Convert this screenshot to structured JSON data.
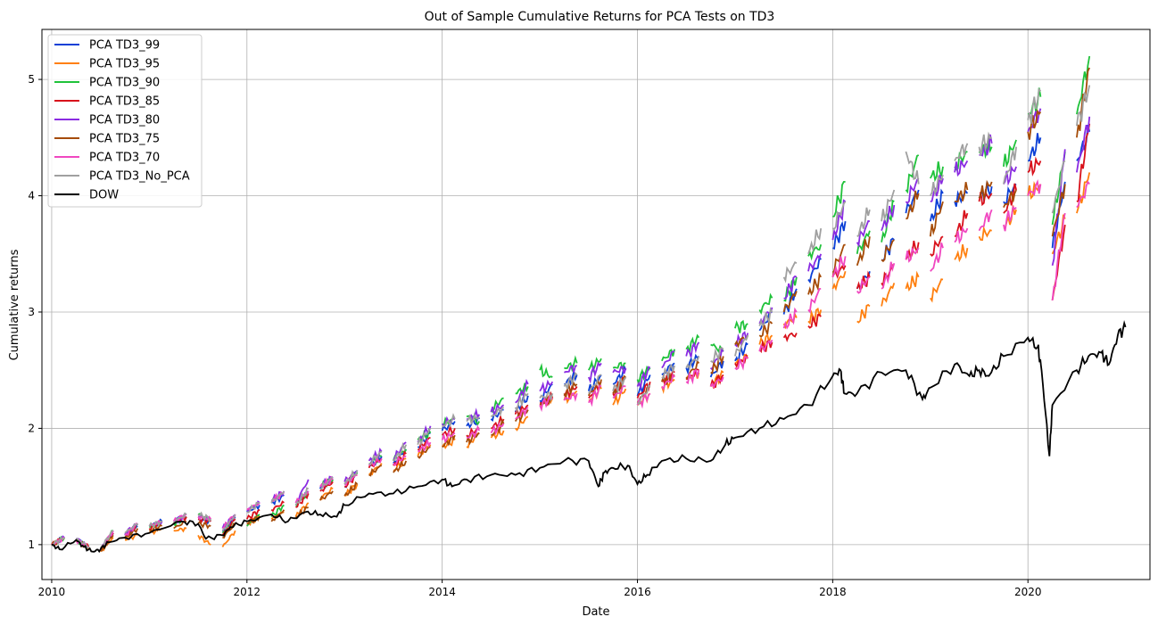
{
  "chart_data": {
    "type": "line",
    "title": "Out of Sample Cumulative Returns for PCA Tests on TD3",
    "xlabel": "Date",
    "ylabel": "Cumulative returns",
    "xlim": [
      2009.9,
      2021.25
    ],
    "ylim": [
      0.7,
      5.43
    ],
    "x_ticks": [
      2010,
      2012,
      2014,
      2016,
      2018,
      2020
    ],
    "x_tick_labels": [
      "2010",
      "2012",
      "2014",
      "2016",
      "2018",
      "2020"
    ],
    "y_ticks": [
      1,
      2,
      3,
      4,
      5
    ],
    "y_tick_labels": [
      "1",
      "2",
      "3",
      "4",
      "5"
    ],
    "grid": true,
    "legend_position": "top-left",
    "segment_starts": [
      2010.0,
      2010.25,
      2010.5,
      2010.75,
      2011.0,
      2011.25,
      2011.5,
      2011.75,
      2012.0,
      2012.25,
      2012.5,
      2012.75,
      2013.0,
      2013.25,
      2013.5,
      2013.75,
      2014.0,
      2014.25,
      2014.5,
      2014.75,
      2015.0,
      2015.25,
      2015.5,
      2015.75,
      2016.0,
      2016.25,
      2016.5,
      2016.75,
      2017.0,
      2017.25,
      2017.5,
      2017.75,
      2018.0,
      2018.25,
      2018.5,
      2018.75,
      2019.0,
      2019.25,
      2019.5,
      2019.75,
      2020.0,
      2020.25,
      2020.5
    ],
    "segment_length": 0.13,
    "series": [
      {
        "name": "PCA TD3_99",
        "color": "#0b3fd6",
        "start_values": [
          1.0,
          1.04,
          0.96,
          1.08,
          1.16,
          1.2,
          1.22,
          1.12,
          1.28,
          1.36,
          1.34,
          1.48,
          1.5,
          1.68,
          1.7,
          1.84,
          1.98,
          2.02,
          2.08,
          2.14,
          2.24,
          2.38,
          2.32,
          2.38,
          2.28,
          2.46,
          2.52,
          2.44,
          2.58,
          2.84,
          2.98,
          3.28,
          3.55,
          3.2,
          3.45,
          3.85,
          3.78,
          3.95,
          3.98,
          3.95,
          4.3,
          3.55,
          4.3
        ],
        "end_values": [
          1.06,
          0.98,
          1.1,
          1.16,
          1.2,
          1.24,
          1.2,
          1.24,
          1.34,
          1.42,
          1.46,
          1.58,
          1.62,
          1.76,
          1.82,
          1.96,
          2.06,
          2.08,
          2.16,
          2.28,
          2.38,
          2.46,
          2.46,
          2.5,
          2.46,
          2.56,
          2.62,
          2.58,
          2.72,
          3.0,
          3.2,
          3.45,
          3.78,
          3.35,
          3.62,
          4.05,
          4.02,
          4.02,
          4.08,
          4.1,
          4.5,
          4.12,
          4.55
        ]
      },
      {
        "name": "PCA TD3_95",
        "color": "#ff7f0e",
        "start_values": [
          1.0,
          1.03,
          0.94,
          1.04,
          1.1,
          1.12,
          1.08,
          0.98,
          1.18,
          1.22,
          1.24,
          1.4,
          1.42,
          1.6,
          1.64,
          1.76,
          1.84,
          1.84,
          1.92,
          2.0,
          2.2,
          2.24,
          2.24,
          2.2,
          2.2,
          2.36,
          2.42,
          2.36,
          2.56,
          2.72,
          2.9,
          2.92,
          3.2,
          2.92,
          3.05,
          3.2,
          3.12,
          3.45,
          3.65,
          3.72,
          4.0,
          3.5,
          3.85
        ],
        "end_values": [
          1.05,
          0.97,
          1.06,
          1.08,
          1.14,
          1.14,
          1.0,
          1.12,
          1.24,
          1.28,
          1.36,
          1.48,
          1.52,
          1.7,
          1.74,
          1.86,
          1.9,
          1.96,
          1.98,
          2.1,
          2.26,
          2.32,
          2.34,
          2.34,
          2.3,
          2.42,
          2.48,
          2.48,
          2.62,
          2.8,
          2.95,
          3.02,
          3.35,
          3.05,
          3.25,
          3.3,
          3.28,
          3.55,
          3.7,
          3.88,
          4.1,
          3.8,
          4.2
        ]
      },
      {
        "name": "PCA TD3_90",
        "color": "#1fc23a",
        "start_values": [
          1.0,
          1.04,
          0.96,
          1.06,
          1.15,
          1.18,
          1.26,
          1.1,
          1.16,
          1.24,
          1.34,
          1.5,
          1.52,
          1.7,
          1.72,
          1.9,
          2.04,
          2.1,
          2.16,
          2.3,
          2.5,
          2.52,
          2.5,
          2.52,
          2.42,
          2.58,
          2.68,
          2.72,
          2.86,
          3.02,
          3.1,
          3.48,
          3.82,
          3.5,
          3.6,
          4.05,
          4.15,
          4.25,
          4.38,
          4.25,
          4.7,
          3.75,
          4.7
        ],
        "end_values": [
          1.06,
          0.98,
          1.12,
          1.18,
          1.2,
          1.24,
          1.22,
          1.22,
          1.26,
          1.34,
          1.44,
          1.56,
          1.62,
          1.76,
          1.82,
          1.96,
          2.08,
          2.06,
          2.26,
          2.36,
          2.44,
          2.56,
          2.6,
          2.56,
          2.52,
          2.68,
          2.78,
          2.66,
          2.9,
          3.12,
          3.3,
          3.58,
          4.12,
          3.7,
          3.95,
          4.35,
          4.25,
          4.38,
          4.42,
          4.48,
          4.85,
          4.38,
          5.2
        ]
      },
      {
        "name": "PCA TD3_85",
        "color": "#d8111b",
        "start_values": [
          1.0,
          1.04,
          0.95,
          1.06,
          1.14,
          1.18,
          1.22,
          1.08,
          1.22,
          1.3,
          1.32,
          1.46,
          1.5,
          1.66,
          1.68,
          1.82,
          1.94,
          1.94,
          2.0,
          2.12,
          2.22,
          2.28,
          2.26,
          2.3,
          2.26,
          2.4,
          2.42,
          2.36,
          2.56,
          2.68,
          2.78,
          2.88,
          3.3,
          3.2,
          3.25,
          3.45,
          3.5,
          3.65,
          3.95,
          3.85,
          4.2,
          3.1,
          3.95
        ],
        "end_values": [
          1.06,
          0.98,
          1.1,
          1.18,
          1.2,
          1.24,
          1.2,
          1.22,
          1.3,
          1.36,
          1.44,
          1.54,
          1.6,
          1.74,
          1.78,
          1.92,
          2.0,
          2.0,
          2.08,
          2.2,
          2.26,
          2.36,
          2.4,
          2.44,
          2.4,
          2.48,
          2.5,
          2.46,
          2.6,
          2.74,
          2.82,
          2.96,
          3.4,
          3.3,
          3.4,
          3.6,
          3.65,
          3.85,
          4.02,
          4.05,
          4.3,
          3.75,
          4.62
        ]
      },
      {
        "name": "PCA TD3_80",
        "color": "#8a2be2",
        "start_values": [
          1.0,
          1.05,
          0.97,
          1.1,
          1.16,
          1.2,
          1.24,
          1.14,
          1.3,
          1.38,
          1.36,
          1.5,
          1.54,
          1.72,
          1.74,
          1.88,
          2.04,
          2.08,
          2.14,
          2.22,
          2.32,
          2.48,
          2.44,
          2.48,
          2.36,
          2.52,
          2.62,
          2.52,
          2.72,
          2.9,
          3.12,
          3.35,
          3.62,
          3.6,
          3.7,
          3.95,
          3.95,
          4.2,
          4.35,
          4.1,
          4.55,
          3.4,
          4.2
        ],
        "end_values": [
          1.06,
          0.98,
          1.12,
          1.18,
          1.2,
          1.26,
          1.22,
          1.26,
          1.36,
          1.46,
          1.56,
          1.58,
          1.64,
          1.8,
          1.88,
          2.02,
          2.08,
          2.12,
          2.2,
          2.38,
          2.4,
          2.54,
          2.56,
          2.52,
          2.52,
          2.66,
          2.74,
          2.66,
          2.82,
          3.04,
          3.3,
          3.5,
          3.95,
          3.78,
          3.92,
          4.15,
          4.15,
          4.3,
          4.45,
          4.25,
          4.75,
          4.4,
          4.68
        ]
      },
      {
        "name": "PCA TD3_75",
        "color": "#a54b07",
        "start_values": [
          1.0,
          1.04,
          0.95,
          1.05,
          1.12,
          1.14,
          1.18,
          1.06,
          1.18,
          1.2,
          1.24,
          1.38,
          1.42,
          1.6,
          1.62,
          1.76,
          1.84,
          1.88,
          1.94,
          2.06,
          2.2,
          2.3,
          2.28,
          2.3,
          2.22,
          2.4,
          2.44,
          2.48,
          2.72,
          2.8,
          3.0,
          3.15,
          3.35,
          3.4,
          3.45,
          3.8,
          3.65,
          3.95,
          3.98,
          3.9,
          4.55,
          3.65,
          4.5
        ],
        "end_values": [
          1.06,
          0.98,
          1.08,
          1.14,
          1.16,
          1.2,
          1.16,
          1.18,
          1.24,
          1.3,
          1.32,
          1.46,
          1.52,
          1.68,
          1.72,
          1.84,
          1.94,
          1.96,
          2.04,
          2.16,
          2.28,
          2.38,
          2.42,
          2.44,
          2.36,
          2.46,
          2.56,
          2.62,
          2.8,
          2.9,
          3.18,
          3.3,
          3.58,
          3.65,
          3.62,
          4.02,
          3.95,
          4.05,
          4.12,
          4.05,
          4.72,
          4.1,
          5.1
        ]
      },
      {
        "name": "PCA TD3_70",
        "color": "#f047c0",
        "start_values": [
          1.0,
          1.04,
          0.96,
          1.08,
          1.16,
          1.2,
          1.24,
          1.14,
          1.3,
          1.38,
          1.36,
          1.5,
          1.52,
          1.68,
          1.7,
          1.8,
          1.9,
          1.92,
          1.96,
          2.08,
          2.2,
          2.24,
          2.22,
          2.26,
          2.2,
          2.36,
          2.4,
          2.36,
          2.52,
          2.66,
          2.86,
          3.02,
          3.3,
          3.18,
          3.2,
          3.45,
          3.35,
          3.6,
          3.7,
          3.75,
          4.0,
          3.1,
          3.9
        ],
        "end_values": [
          1.06,
          0.98,
          1.12,
          1.18,
          1.2,
          1.26,
          1.22,
          1.26,
          1.36,
          1.44,
          1.46,
          1.56,
          1.6,
          1.74,
          1.76,
          1.88,
          1.96,
          1.98,
          2.04,
          2.18,
          2.26,
          2.3,
          2.36,
          2.36,
          2.3,
          2.44,
          2.5,
          2.44,
          2.6,
          2.76,
          3.0,
          3.2,
          3.48,
          3.3,
          3.42,
          3.55,
          3.55,
          3.72,
          3.88,
          3.9,
          4.1,
          3.85,
          4.1
        ]
      },
      {
        "name": "PCA TD3_No_PCA",
        "color": "#a0a0a0",
        "start_values": [
          1.0,
          1.05,
          0.97,
          1.1,
          1.16,
          1.2,
          1.26,
          1.12,
          1.28,
          1.36,
          1.34,
          1.48,
          1.52,
          1.7,
          1.72,
          1.86,
          2.02,
          2.06,
          2.1,
          2.18,
          2.26,
          2.36,
          2.3,
          2.32,
          2.22,
          2.44,
          2.52,
          2.58,
          2.62,
          2.88,
          3.3,
          3.5,
          3.72,
          3.65,
          3.78,
          4.38,
          4.0,
          4.3,
          4.42,
          4.1,
          4.65,
          3.85,
          4.6
        ],
        "end_values": [
          1.06,
          0.98,
          1.12,
          1.18,
          1.2,
          1.26,
          1.22,
          1.26,
          1.36,
          1.46,
          1.48,
          1.58,
          1.64,
          1.8,
          1.86,
          2.0,
          2.08,
          2.1,
          2.18,
          2.3,
          2.3,
          2.46,
          2.46,
          2.44,
          2.36,
          2.54,
          2.62,
          2.68,
          2.8,
          3.0,
          3.42,
          3.72,
          3.95,
          3.88,
          4.05,
          4.1,
          4.18,
          4.45,
          4.5,
          4.42,
          4.9,
          4.3,
          4.95
        ]
      },
      {
        "name": "DOW",
        "color": "#000000",
        "continuous": true,
        "x": [
          2010.0,
          2010.08,
          2010.25,
          2010.33,
          2010.42,
          2010.5,
          2010.58,
          2010.75,
          2011.0,
          2011.33,
          2011.5,
          2011.58,
          2011.75,
          2011.83,
          2012.0,
          2012.25,
          2012.42,
          2012.6,
          2012.75,
          2012.92,
          2013.0,
          2013.25,
          2013.5,
          2013.75,
          2014.0,
          2014.1,
          2014.25,
          2014.5,
          2014.75,
          2015.0,
          2015.25,
          2015.5,
          2015.6,
          2015.66,
          2015.75,
          2015.9,
          2016.0,
          2016.1,
          2016.25,
          2016.5,
          2016.75,
          2016.9,
          2017.0,
          2017.25,
          2017.5,
          2017.75,
          2018.0,
          2018.08,
          2018.12,
          2018.25,
          2018.5,
          2018.75,
          2018.92,
          2019.0,
          2019.25,
          2019.4,
          2019.5,
          2019.6,
          2019.75,
          2020.0,
          2020.1,
          2020.14,
          2020.22,
          2020.25,
          2020.5,
          2020.62,
          2020.75,
          2020.83,
          2020.92,
          2021.0
        ],
        "values": [
          1.0,
          0.96,
          1.04,
          0.98,
          0.94,
          0.96,
          1.02,
          1.06,
          1.1,
          1.2,
          1.18,
          1.05,
          1.08,
          1.15,
          1.2,
          1.26,
          1.2,
          1.28,
          1.26,
          1.24,
          1.34,
          1.44,
          1.44,
          1.5,
          1.56,
          1.5,
          1.56,
          1.6,
          1.6,
          1.66,
          1.72,
          1.72,
          1.5,
          1.62,
          1.66,
          1.68,
          1.52,
          1.6,
          1.72,
          1.74,
          1.72,
          1.86,
          1.92,
          2.0,
          2.08,
          2.2,
          2.45,
          2.5,
          2.3,
          2.3,
          2.48,
          2.5,
          2.25,
          2.35,
          2.55,
          2.45,
          2.5,
          2.45,
          2.62,
          2.78,
          2.7,
          2.5,
          1.76,
          2.2,
          2.5,
          2.62,
          2.65,
          2.55,
          2.8,
          2.87
        ]
      }
    ]
  }
}
